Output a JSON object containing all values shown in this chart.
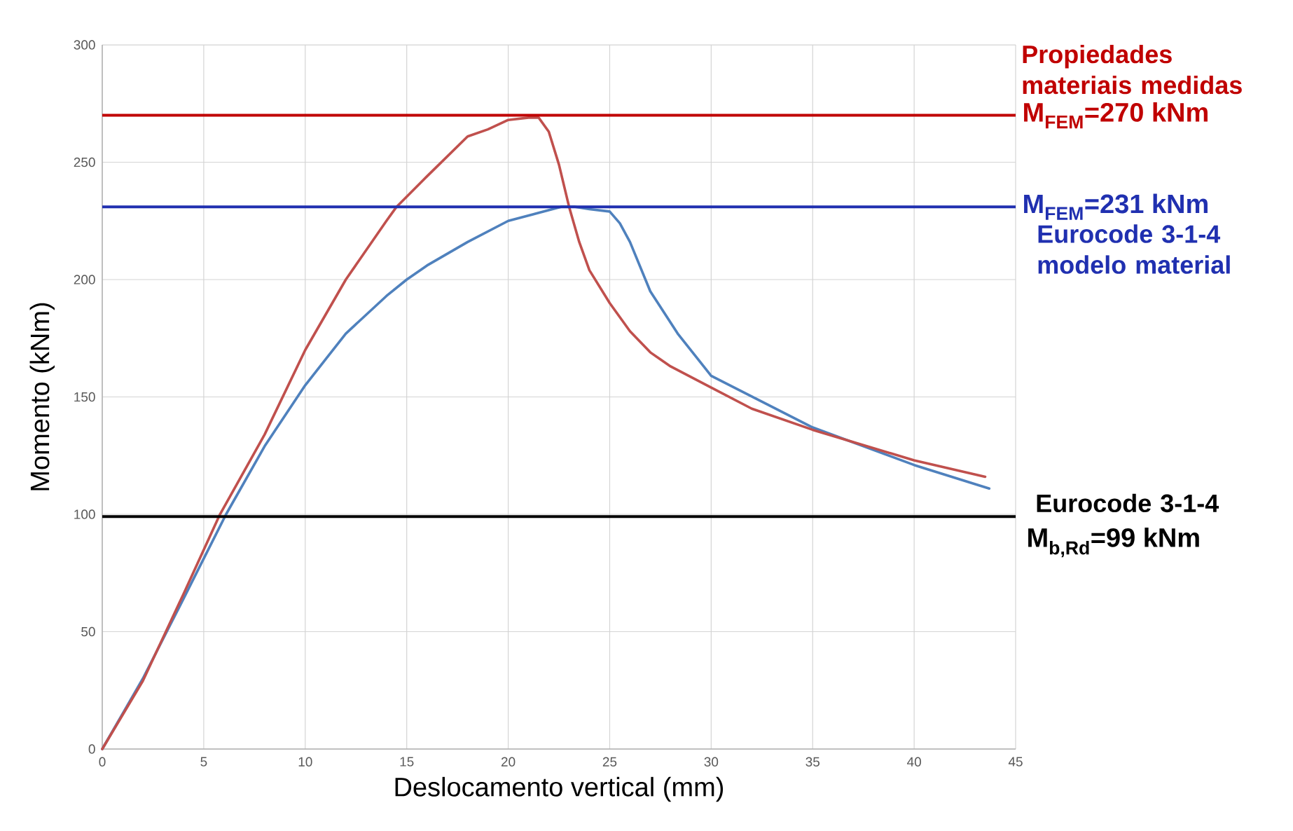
{
  "chart_data": {
    "type": "line",
    "xlabel": "Deslocamento vertical (mm)",
    "ylabel": "Momento (kNm)",
    "xlim": [
      0,
      45
    ],
    "ylim": [
      0,
      300
    ],
    "xticks": [
      0,
      5,
      10,
      15,
      20,
      25,
      30,
      35,
      40,
      45
    ],
    "yticks": [
      0,
      50,
      100,
      150,
      200,
      250,
      300
    ],
    "grid": true,
    "line_style": "solid",
    "marker": "none",
    "series": [
      {
        "color": "#4f81bd",
        "x": [
          0,
          2,
          4,
          6.1,
          8,
          10,
          12,
          14,
          15,
          16,
          18,
          20,
          22.6,
          23.3,
          24,
          25,
          25.5,
          26,
          27,
          28.35,
          30,
          35,
          40,
          43.7
        ],
        "values": [
          0,
          30,
          64,
          100,
          129,
          155,
          177,
          193,
          200,
          206,
          216,
          225,
          231,
          231,
          230,
          229,
          224,
          216,
          195,
          177,
          159,
          137,
          121,
          111
        ]
      },
      {
        "color": "#c0504d",
        "x": [
          0,
          2,
          4,
          5.8,
          8,
          10,
          12,
          14,
          14.5,
          16,
          18,
          19,
          20,
          21,
          21.5,
          22,
          22.5,
          23,
          23.5,
          24,
          25,
          26,
          27,
          28,
          30,
          32,
          35,
          40,
          43.5
        ],
        "values": [
          0,
          29,
          66,
          100,
          134,
          170,
          200,
          225,
          231,
          244,
          261,
          264,
          268,
          269,
          269,
          263,
          249,
          231,
          216,
          204,
          190,
          178,
          169,
          163,
          154,
          145,
          136,
          123,
          116
        ]
      }
    ],
    "ref_lines": [
      {
        "axis": "y",
        "value": 270,
        "label": "M$_{FEM}$=270 kNm",
        "color": "#c00000"
      },
      {
        "axis": "y",
        "value": 231,
        "label": "M$_{FEM}$=231 kNm",
        "color": "#2030b0"
      },
      {
        "axis": "y",
        "value": 99,
        "label": "M$_{b,Rd}$=99 kNm",
        "color": "#000000"
      }
    ],
    "annotations": [
      "Propiedades materiais medidas",
      "Eurocode 3-1-4 modelo material",
      "Eurocode 3-1-4"
    ]
  }
}
